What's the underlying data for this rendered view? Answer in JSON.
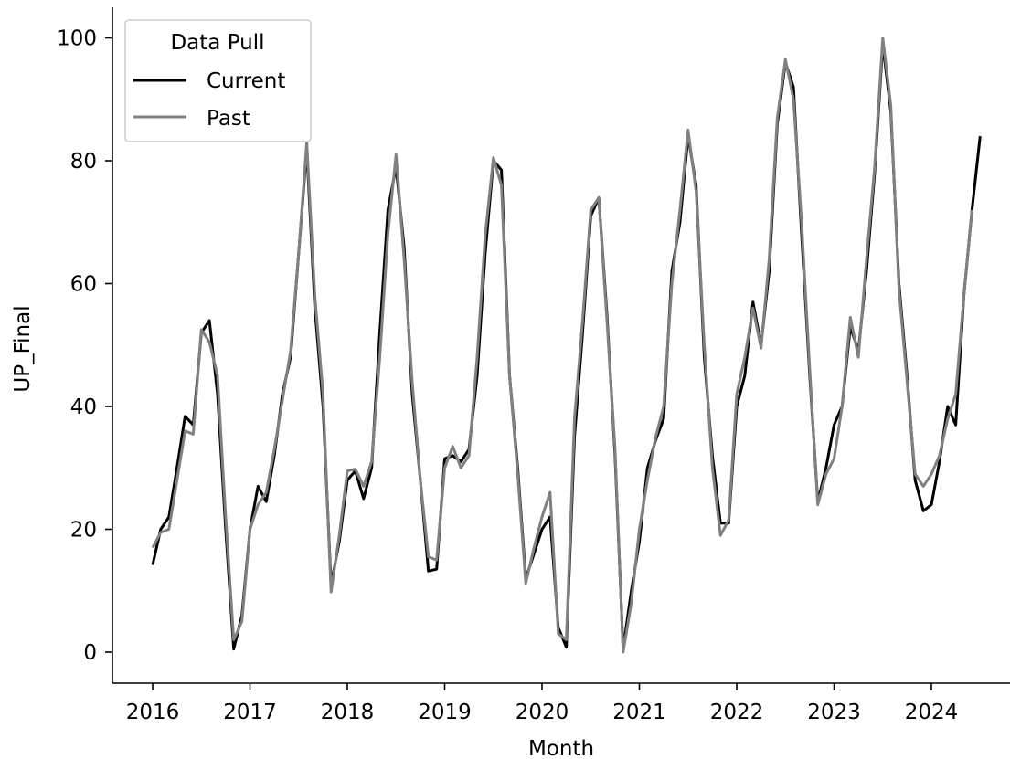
{
  "chart_data": {
    "type": "line",
    "title": "",
    "xlabel": "Month",
    "ylabel": "UP_Final",
    "xlim": [
      2015.6,
      2024.8
    ],
    "ylim": [
      -5,
      105
    ],
    "x_ticks": [
      2016,
      2017,
      2018,
      2019,
      2020,
      2021,
      2022,
      2023,
      2024
    ],
    "x_tick_labels": [
      "2016",
      "2017",
      "2018",
      "2019",
      "2020",
      "2021",
      "2022",
      "2023",
      "2024"
    ],
    "y_ticks": [
      0,
      20,
      40,
      60,
      80,
      100
    ],
    "y_tick_labels": [
      "0",
      "20",
      "40",
      "60",
      "80",
      "100"
    ],
    "grid": false,
    "legend": {
      "title": "Data Pull",
      "position": "top-left",
      "entries": [
        "Current",
        "Past"
      ]
    },
    "series": [
      {
        "name": "Current",
        "color": "#000000",
        "x": [
          2016.0,
          2016.083,
          2016.167,
          2016.25,
          2016.333,
          2016.417,
          2016.5,
          2016.583,
          2016.667,
          2016.75,
          2016.833,
          2016.917,
          2017.0,
          2017.083,
          2017.167,
          2017.25,
          2017.333,
          2017.417,
          2017.5,
          2017.583,
          2017.667,
          2017.75,
          2017.833,
          2017.917,
          2018.0,
          2018.083,
          2018.167,
          2018.25,
          2018.333,
          2018.417,
          2018.5,
          2018.583,
          2018.667,
          2018.75,
          2018.833,
          2018.917,
          2019.0,
          2019.083,
          2019.167,
          2019.25,
          2019.333,
          2019.417,
          2019.5,
          2019.583,
          2019.667,
          2019.75,
          2019.833,
          2019.917,
          2020.0,
          2020.083,
          2020.167,
          2020.25,
          2020.333,
          2020.417,
          2020.5,
          2020.583,
          2020.667,
          2020.75,
          2020.833,
          2020.917,
          2021.0,
          2021.083,
          2021.167,
          2021.25,
          2021.333,
          2021.417,
          2021.5,
          2021.583,
          2021.667,
          2021.75,
          2021.833,
          2021.917,
          2022.0,
          2022.083,
          2022.167,
          2022.25,
          2022.333,
          2022.417,
          2022.5,
          2022.583,
          2022.667,
          2022.75,
          2022.833,
          2022.917,
          2023.0,
          2023.083,
          2023.167,
          2023.25,
          2023.333,
          2023.417,
          2023.5,
          2023.583,
          2023.667,
          2023.75,
          2023.833,
          2023.917,
          2024.0,
          2024.083,
          2024.167,
          2024.25,
          2024.333,
          2024.417,
          2024.5
        ],
        "y": [
          14.2,
          20.0,
          22.0,
          30.0,
          38.4,
          37.0,
          52.0,
          54.0,
          42.0,
          20.0,
          0.5,
          6.0,
          20.0,
          27.0,
          24.5,
          32.0,
          42.0,
          48.0,
          65.0,
          82.0,
          56.0,
          40.0,
          11.0,
          18.0,
          28.0,
          29.5,
          25.0,
          30.0,
          52.0,
          72.0,
          79.0,
          66.0,
          42.0,
          28.0,
          13.2,
          13.5,
          31.5,
          32.0,
          31.0,
          33.0,
          45.0,
          65.0,
          80.0,
          78.5,
          45.0,
          30.0,
          12.0,
          16.0,
          20.0,
          22.0,
          4.0,
          0.8,
          35.0,
          52.0,
          71.0,
          74.0,
          55.0,
          32.0,
          0.5,
          10.0,
          18.0,
          30.0,
          34.5,
          38.0,
          62.0,
          70.0,
          84.0,
          76.0,
          48.0,
          32.0,
          21.0,
          21.0,
          40.0,
          45.0,
          57.0,
          50.0,
          62.0,
          86.0,
          96.0,
          92.0,
          68.0,
          45.0,
          24.5,
          30.0,
          37.0,
          40.0,
          53.0,
          49.0,
          62.0,
          78.0,
          99.0,
          88.0,
          60.0,
          45.0,
          28.0,
          23.0,
          24.0,
          31.0,
          40.0,
          37.0,
          58.0,
          72.0,
          84.0
        ]
      },
      {
        "name": "Past",
        "color": "#808080",
        "x": [
          2016.0,
          2016.083,
          2016.167,
          2016.25,
          2016.333,
          2016.417,
          2016.5,
          2016.583,
          2016.667,
          2016.75,
          2016.833,
          2016.917,
          2017.0,
          2017.083,
          2017.167,
          2017.25,
          2017.333,
          2017.417,
          2017.5,
          2017.583,
          2017.667,
          2017.75,
          2017.833,
          2017.917,
          2018.0,
          2018.083,
          2018.167,
          2018.25,
          2018.333,
          2018.417,
          2018.5,
          2018.583,
          2018.667,
          2018.75,
          2018.833,
          2018.917,
          2019.0,
          2019.083,
          2019.167,
          2019.25,
          2019.333,
          2019.417,
          2019.5,
          2019.583,
          2019.667,
          2019.75,
          2019.833,
          2019.917,
          2020.0,
          2020.083,
          2020.167,
          2020.25,
          2020.333,
          2020.417,
          2020.5,
          2020.583,
          2020.667,
          2020.75,
          2020.833,
          2020.917,
          2021.0,
          2021.083,
          2021.167,
          2021.25,
          2021.333,
          2021.417,
          2021.5,
          2021.583,
          2021.667,
          2021.75,
          2021.833,
          2021.917,
          2022.0,
          2022.083,
          2022.167,
          2022.25,
          2022.333,
          2022.417,
          2022.5,
          2022.583,
          2022.667,
          2022.75,
          2022.833,
          2022.917,
          2023.0,
          2023.083,
          2023.167,
          2023.25,
          2023.333,
          2023.417,
          2023.5,
          2023.583,
          2023.667,
          2023.75,
          2023.833,
          2023.917,
          2024.0,
          2024.083,
          2024.167,
          2024.25,
          2024.333,
          2024.417
        ],
        "y": [
          17.0,
          19.5,
          20.0,
          28.0,
          36.0,
          35.5,
          52.5,
          50.5,
          45.0,
          22.0,
          2.0,
          5.0,
          20.0,
          24.0,
          26.0,
          33.0,
          41.0,
          49.0,
          65.0,
          83.0,
          58.0,
          42.0,
          9.8,
          19.0,
          29.5,
          29.8,
          27.0,
          31.0,
          48.0,
          68.0,
          81.0,
          64.0,
          44.0,
          28.0,
          15.5,
          15.0,
          30.0,
          33.5,
          30.0,
          32.0,
          48.0,
          68.0,
          80.5,
          76.0,
          45.0,
          29.0,
          11.2,
          17.0,
          22.0,
          26.0,
          3.0,
          2.0,
          38.0,
          54.0,
          72.0,
          74.0,
          54.0,
          33.0,
          0.0,
          8.0,
          20.0,
          28.0,
          35.0,
          40.0,
          60.0,
          72.0,
          85.0,
          75.0,
          50.0,
          30.0,
          19.0,
          21.5,
          42.0,
          48.0,
          56.0,
          49.5,
          64.0,
          87.0,
          96.5,
          90.0,
          70.0,
          46.0,
          24.0,
          29.0,
          31.5,
          40.0,
          54.5,
          48.0,
          64.0,
          79.0,
          100.0,
          89.0,
          59.0,
          44.0,
          29.0,
          27.0,
          29.0,
          32.0,
          38.0,
          42.0,
          58.0,
          72.0
        ]
      }
    ]
  }
}
